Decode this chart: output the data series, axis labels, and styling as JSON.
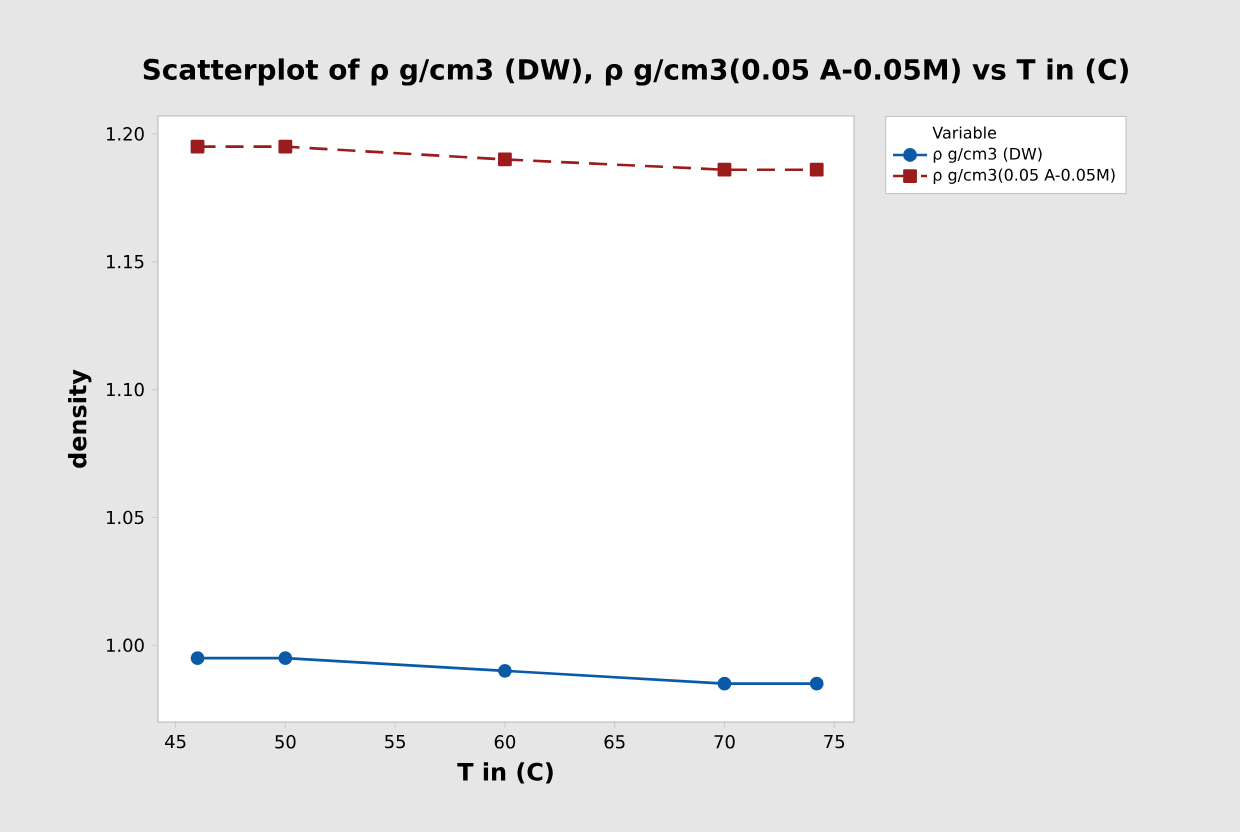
{
  "chart_data": {
    "type": "line",
    "title": "Scatterplot of ρ g/cm3 (DW), ρ g/cm3(0.05 A-0.05M) vs T in (C)",
    "xlabel": "T in (C)",
    "ylabel": "density",
    "legend_title": "Variable",
    "legend": "top right",
    "grid": false,
    "x": [
      46,
      50,
      60,
      70,
      74.2
    ],
    "series": [
      {
        "name": "ρ g/cm3 (DW)",
        "color": "#0b5aa8",
        "marker": "circle",
        "line_style": "solid",
        "values": [
          0.995,
          0.995,
          0.99,
          0.985,
          0.985
        ]
      },
      {
        "name": "ρ g/cm3(0.05 A-0.05M)",
        "color": "#9b1c1c",
        "marker": "square",
        "line_style": "dashed",
        "values": [
          1.195,
          1.195,
          1.19,
          1.186,
          1.186
        ]
      }
    ],
    "xlim": [
      44.2,
      75.9
    ],
    "xticks": [
      45,
      50,
      55,
      60,
      65,
      70,
      75
    ],
    "ylim": [
      0.97,
      1.207
    ],
    "yticks": [
      {
        "value": 1.0,
        "label": "1.00"
      },
      1.05,
      {
        "value": 1.1,
        "label": "1.10"
      },
      1.15,
      {
        "value": 1.2,
        "label": "1.20"
      }
    ]
  }
}
